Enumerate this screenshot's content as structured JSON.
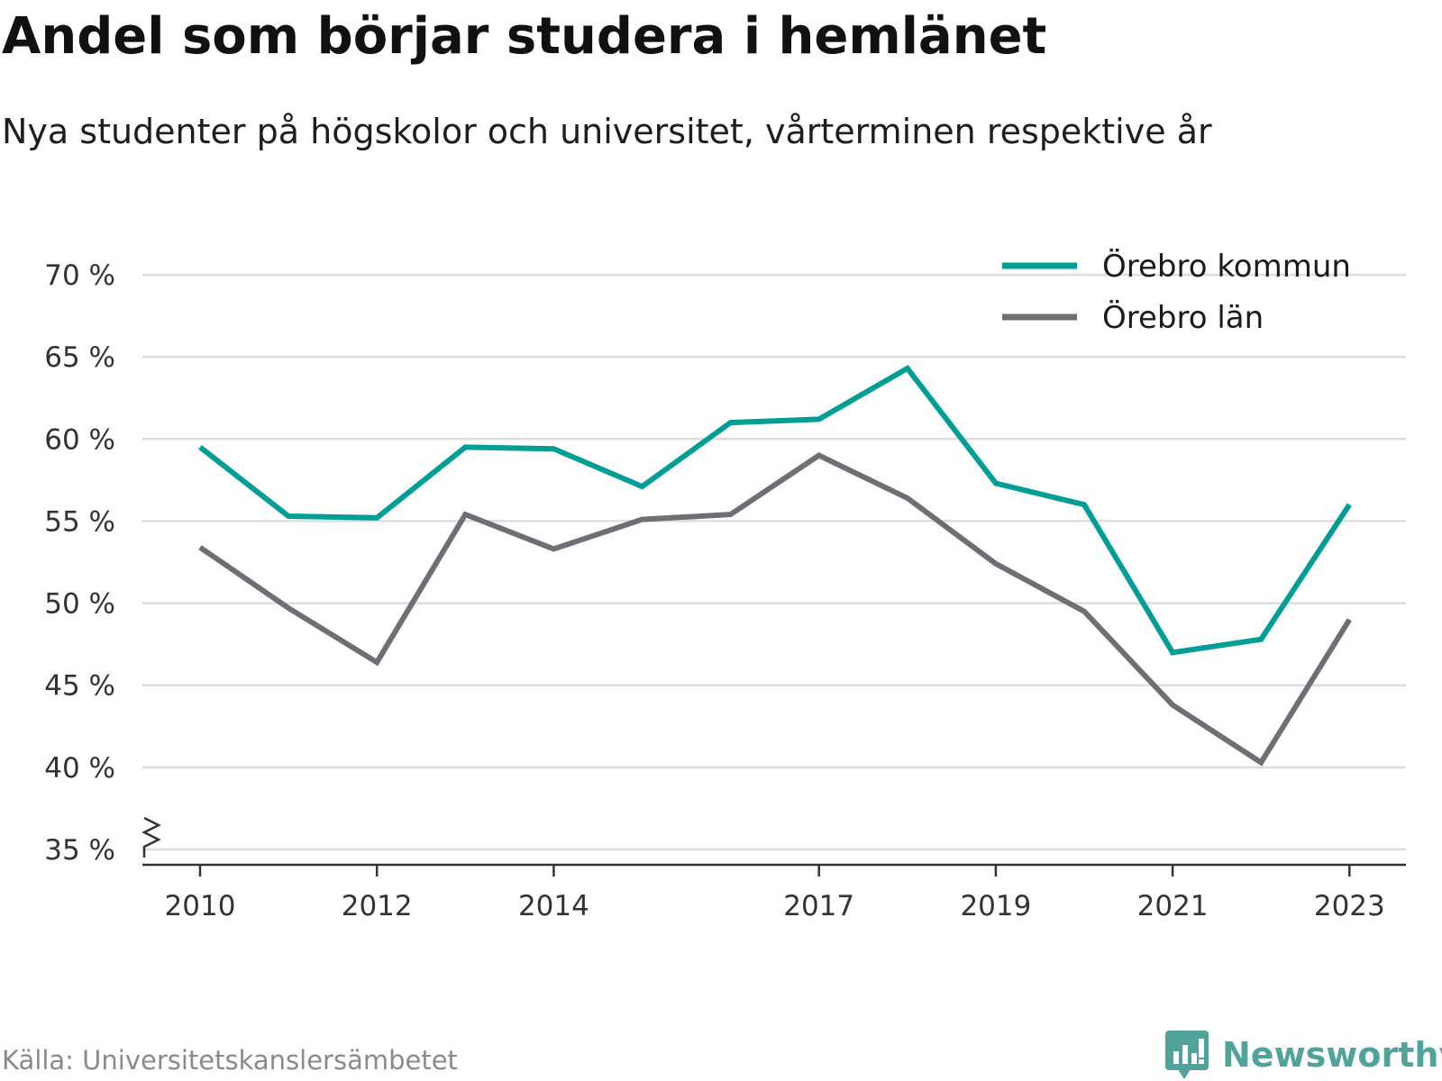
{
  "title": "Andel som börjar studera i hemlänet",
  "subtitle": "Nya studenter på högskolor och universitet, vårterminen respektive år",
  "source": "Källa: Universitetskanslersämbetet",
  "brand": {
    "name": "Newsworthy",
    "icon": "newsworthy-logo-icon"
  },
  "colors": {
    "kommun": "#009e94",
    "lan": "#6f6e75",
    "grid": "#dddddd",
    "axis": "#333333"
  },
  "chart_data": {
    "type": "line",
    "title": "Andel som börjar studera i hemlänet",
    "subtitle": "Nya studenter på högskolor och universitet, vårterminen respektive år",
    "x": [
      2010,
      2011,
      2012,
      2013,
      2014,
      2015,
      2016,
      2017,
      2018,
      2019,
      2020,
      2021,
      2022,
      2023
    ],
    "x_ticks": [
      "2010",
      "2012",
      "2014",
      "2017",
      "2019",
      "2021",
      "2023"
    ],
    "y_ticks": [
      "35 %",
      "40 %",
      "45 %",
      "50 %",
      "55 %",
      "60 %",
      "65 %",
      "70 %"
    ],
    "ylim": [
      35,
      70
    ],
    "y_axis_break": true,
    "grid": true,
    "legend_position": "top-right",
    "series": [
      {
        "name": "Örebro kommun",
        "color": "#009e94",
        "values": [
          59.5,
          55.3,
          55.2,
          59.5,
          59.4,
          57.1,
          61.0,
          61.2,
          64.3,
          57.3,
          56.0,
          47.0,
          47.8,
          56.0
        ]
      },
      {
        "name": "Örebro län",
        "color": "#6f6e75",
        "values": [
          53.4,
          49.7,
          46.4,
          55.4,
          53.3,
          55.1,
          55.4,
          59.0,
          56.4,
          52.4,
          49.5,
          43.8,
          40.3,
          49.0
        ]
      }
    ]
  }
}
